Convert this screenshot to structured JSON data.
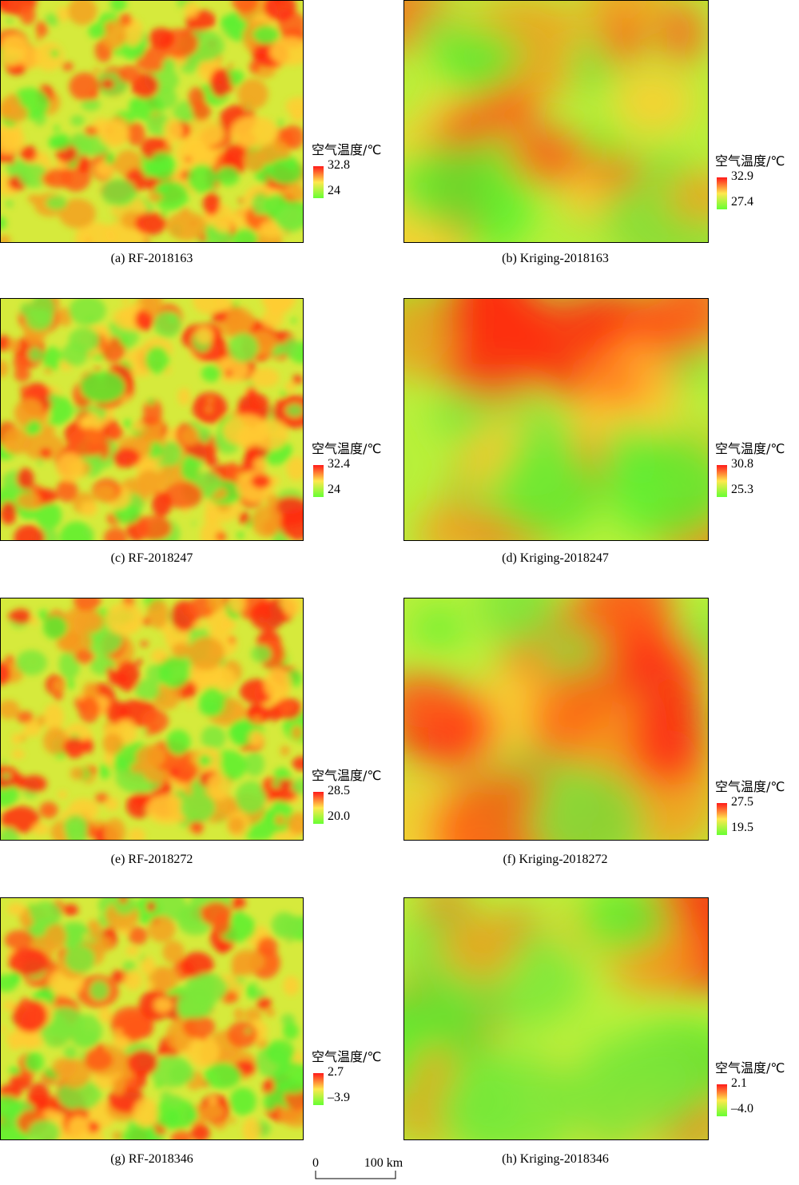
{
  "panels": [
    {
      "caption": "(a) RF-2018163",
      "legend_title": "空气温度/℃",
      "legend_max": "32.8",
      "legend_min": "24"
    },
    {
      "caption": "(b) Kriging-2018163",
      "legend_title": "空气温度/℃",
      "legend_max": "32.9",
      "legend_min": "27.4"
    },
    {
      "caption": "(c) RF-2018247",
      "legend_title": "空气温度/℃",
      "legend_max": "32.4",
      "legend_min": "24"
    },
    {
      "caption": "(d) Kriging-2018247",
      "legend_title": "空气温度/℃",
      "legend_max": "30.8",
      "legend_min": "25.3"
    },
    {
      "caption": "(e) RF-2018272",
      "legend_title": "空气温度/℃",
      "legend_max": "28.5",
      "legend_min": "20.0"
    },
    {
      "caption": "(f) Kriging-2018272",
      "legend_title": "空气温度/℃",
      "legend_max": "27.5",
      "legend_min": "19.5"
    },
    {
      "caption": "(g) RF-2018346",
      "legend_title": "空气温度/℃",
      "legend_max": "2.7",
      "legend_min": "–3.9"
    },
    {
      "caption": "(h) Kriging-2018346",
      "legend_title": "空气温度/℃",
      "legend_max": "2.1",
      "legend_min": "–4.0"
    }
  ],
  "scale_bar": {
    "start": "0",
    "end": "100 km"
  }
}
